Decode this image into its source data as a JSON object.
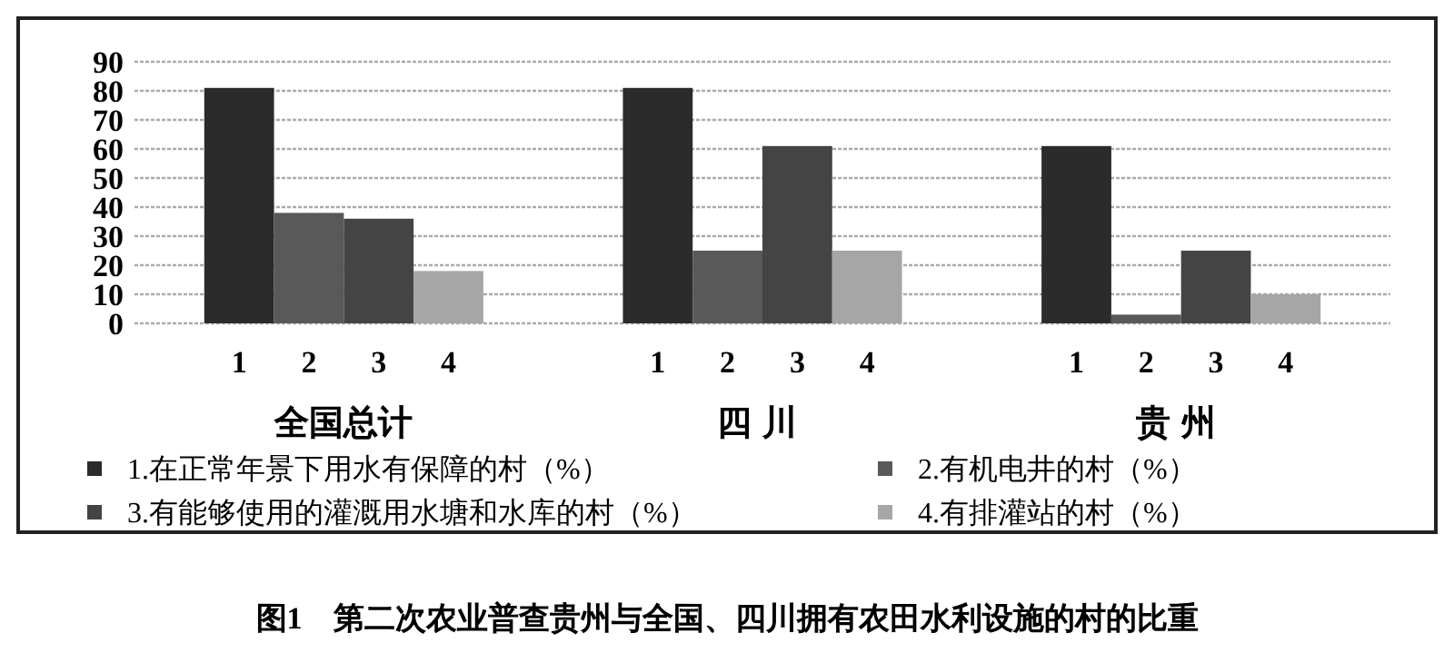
{
  "chart_data": {
    "type": "bar",
    "title": "图1　第二次农业普查贵州与全国、四川拥有农田水利设施的村的比重",
    "categories": [
      "1",
      "2",
      "3",
      "4",
      null,
      null,
      "1",
      "2",
      "3",
      "4",
      null,
      null,
      "1",
      "2",
      "3",
      "4"
    ],
    "series": [
      {
        "name": "1.在正常年景下用水有保障的村（%）",
        "color": "#2b2b2b",
        "values": [
          81,
          null,
          null,
          null,
          null,
          null,
          81,
          null,
          null,
          null,
          null,
          null,
          61,
          null,
          null,
          null
        ]
      },
      {
        "name": "2.有机电井的村（%）",
        "color": "#595959",
        "values": [
          null,
          38,
          null,
          null,
          null,
          null,
          null,
          25,
          null,
          null,
          null,
          null,
          null,
          3,
          null,
          null
        ]
      },
      {
        "name": "3.有能够使用的灌溉用水塘和水库的村（%）",
        "color": "#444444",
        "values": [
          null,
          null,
          36,
          null,
          null,
          null,
          null,
          null,
          61,
          null,
          null,
          null,
          null,
          null,
          25,
          null
        ]
      },
      {
        "name": "4.有排灌站的村（%）",
        "color": "#a6a6a6",
        "values": [
          null,
          null,
          null,
          18,
          null,
          null,
          null,
          null,
          null,
          25,
          null,
          null,
          null,
          null,
          null,
          10
        ]
      }
    ],
    "annotations": [
      "全国总计",
      "四川",
      "贵州"
    ],
    "ylim": [
      0,
      90
    ],
    "yticks": [
      0,
      10,
      20,
      30,
      40,
      50,
      60,
      70,
      80,
      90
    ],
    "grid": true,
    "legend": "bottom"
  }
}
